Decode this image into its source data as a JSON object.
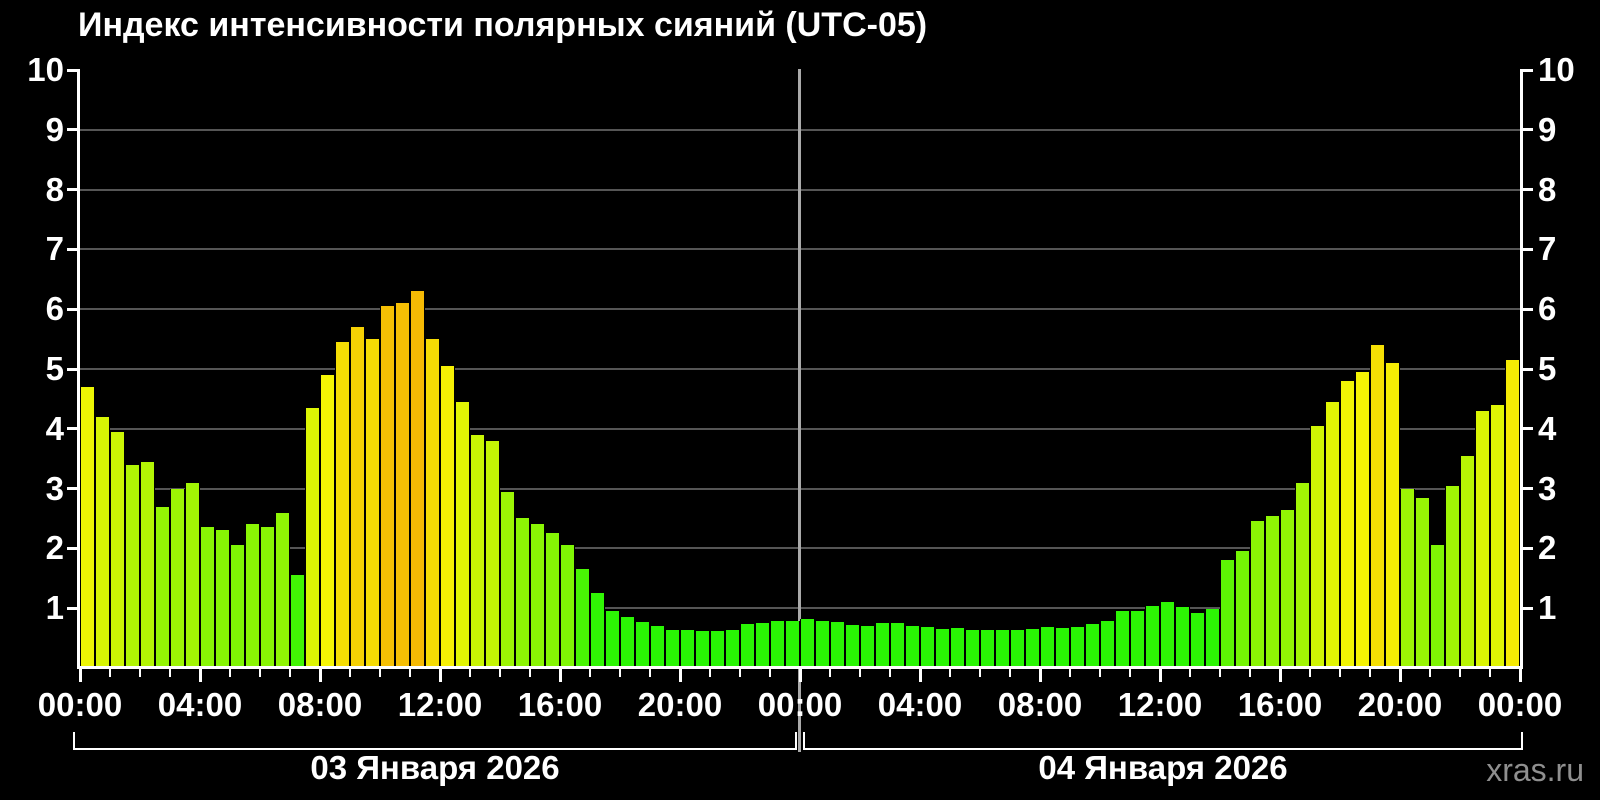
{
  "title": "Индекс интенсивности полярных сияний (UTC-05)",
  "watermark": "xras.ru",
  "colors": {
    "background": "#000000",
    "axis": "#ffffff",
    "gridline": "#555555",
    "day_divider": "#aaaaaa",
    "text": "#ffffff",
    "watermark_text": "#8f8f8f",
    "bar_low_green": "#2cf104",
    "bar_mid_yellow": "#fbe505",
    "bar_high_orange": "#fcc000"
  },
  "chart_data": {
    "type": "bar",
    "title": "Индекс интенсивности полярных сияний (UTC-05)",
    "xlabel": "",
    "ylabel": "",
    "ylim": [
      0,
      10
    ],
    "yticks": [
      1,
      2,
      3,
      4,
      5,
      6,
      7,
      8,
      9,
      10
    ],
    "grid": "horizontal, gray on black",
    "legend": "none",
    "bar_interval_minutes": 30,
    "x_major_tick_every_hours": 4,
    "x_minor_tick_every_hours": 1,
    "x_major_tick_labels": [
      "00:00",
      "04:00",
      "08:00",
      "12:00",
      "16:00",
      "20:00",
      "00:00",
      "04:00",
      "08:00",
      "12:00",
      "16:00",
      "20:00",
      "00:00"
    ],
    "days": [
      {
        "date_label": "03 Января 2026",
        "values": [
          4.7,
          4.2,
          3.95,
          3.4,
          3.45,
          2.7,
          3.0,
          3.1,
          2.35,
          2.3,
          2.05,
          2.4,
          2.35,
          2.6,
          1.55,
          4.35,
          4.9,
          5.45,
          5.7,
          5.5,
          6.05,
          6.1,
          6.3,
          5.5,
          5.05,
          4.45,
          3.9,
          3.8,
          2.95,
          2.5,
          2.4,
          2.25,
          2.05,
          1.65,
          1.25,
          0.95,
          0.85,
          0.77,
          0.7,
          0.64,
          0.63,
          0.62,
          0.62,
          0.63,
          0.74,
          0.76,
          0.78,
          0.78
        ]
      },
      {
        "date_label": "04 Января 2026",
        "values": [
          0.82,
          0.79,
          0.77,
          0.72,
          0.71,
          0.76,
          0.75,
          0.7,
          0.68,
          0.66,
          0.67,
          0.64,
          0.64,
          0.63,
          0.63,
          0.65,
          0.68,
          0.67,
          0.69,
          0.74,
          0.78,
          0.96,
          0.95,
          1.03,
          1.11,
          1.02,
          0.92,
          0.98,
          1.8,
          1.95,
          2.45,
          2.55,
          2.65,
          3.1,
          4.05,
          4.45,
          4.8,
          4.95,
          5.4,
          5.1,
          3.0,
          2.85,
          2.05,
          3.05,
          3.55,
          4.3,
          4.4,
          5.15
        ]
      }
    ],
    "color_scale": {
      "description": "bar color by value, HSL hue stops",
      "hue_stops": [
        [
          0.6,
          111
        ],
        [
          1.3,
          109
        ],
        [
          1.7,
          102
        ],
        [
          2.0,
          90
        ],
        [
          3.0,
          82
        ],
        [
          4.0,
          70
        ],
        [
          4.9,
          60
        ],
        [
          5.5,
          53.5
        ],
        [
          6.0,
          47
        ],
        [
          6.3,
          45
        ]
      ],
      "saturation": 97,
      "lightness": 49
    }
  }
}
